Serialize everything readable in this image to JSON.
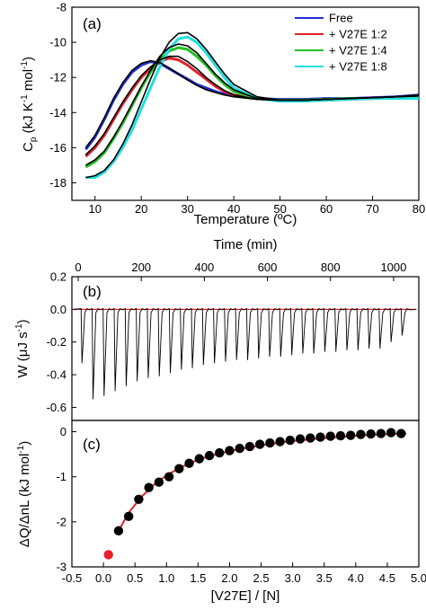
{
  "chart_data": [
    {
      "panel": "(a)",
      "type": "line",
      "xlabel": "Temperature (ºC)",
      "ylabel": "C",
      "ylabel_sub": "p",
      "ylabel_rest": " (kJ K",
      "ylabel_sup1": "-1",
      "ylabel_mid": " mol",
      "ylabel_sup2": "-1",
      "ylabel_end": ")",
      "xlim": [
        5,
        80
      ],
      "ylim": [
        -19,
        -8
      ],
      "xticks": [
        10,
        20,
        30,
        40,
        50,
        60,
        70,
        80
      ],
      "yticks": [
        -18,
        -16,
        -14,
        -12,
        -10,
        -8
      ],
      "legend_position": "top-right",
      "series": [
        {
          "name": "Free",
          "color": "#1f2fd1",
          "x": [
            8,
            10,
            12,
            14,
            16,
            18,
            20,
            22,
            24,
            26,
            28,
            30,
            32,
            34,
            36,
            38,
            40,
            45,
            50,
            55,
            60,
            65,
            70,
            75,
            80
          ],
          "y": [
            -16.1,
            -15.4,
            -14.4,
            -13.3,
            -12.4,
            -11.7,
            -11.3,
            -11.1,
            -11.2,
            -11.5,
            -11.8,
            -12.1,
            -12.4,
            -12.6,
            -12.8,
            -12.95,
            -13.05,
            -13.2,
            -13.25,
            -13.25,
            -13.2,
            -13.2,
            -13.15,
            -13.1,
            -13.0
          ]
        },
        {
          "name": "+ V27E 1:2",
          "color": "#e0202a",
          "x": [
            8,
            10,
            12,
            14,
            16,
            18,
            20,
            22,
            24,
            26,
            28,
            30,
            32,
            34,
            36,
            38,
            40,
            45,
            50,
            55,
            60,
            65,
            70,
            75,
            80
          ],
          "y": [
            -16.5,
            -16.0,
            -15.3,
            -14.4,
            -13.5,
            -12.7,
            -12.0,
            -11.5,
            -11.1,
            -10.9,
            -11.0,
            -11.3,
            -11.7,
            -12.1,
            -12.5,
            -12.8,
            -13.0,
            -13.2,
            -13.3,
            -13.3,
            -13.3,
            -13.25,
            -13.2,
            -13.15,
            -13.1
          ]
        },
        {
          "name": "+ V27E 1:4",
          "color": "#20c020",
          "x": [
            8,
            10,
            12,
            14,
            16,
            18,
            20,
            22,
            24,
            26,
            28,
            30,
            32,
            34,
            36,
            38,
            40,
            45,
            50,
            55,
            60,
            65,
            70,
            75,
            80
          ],
          "y": [
            -17.1,
            -16.8,
            -16.3,
            -15.5,
            -14.6,
            -13.6,
            -12.6,
            -11.7,
            -11.0,
            -10.5,
            -10.3,
            -10.4,
            -10.8,
            -11.3,
            -11.9,
            -12.4,
            -12.8,
            -13.2,
            -13.3,
            -13.3,
            -13.25,
            -13.2,
            -13.2,
            -13.15,
            -13.1
          ]
        },
        {
          "name": "+ V27E 1:8",
          "color": "#20e0e0",
          "x": [
            8,
            10,
            12,
            14,
            16,
            18,
            20,
            22,
            24,
            26,
            28,
            30,
            32,
            34,
            36,
            38,
            40,
            45,
            50,
            55,
            60,
            65,
            70,
            75,
            80
          ],
          "y": [
            -17.7,
            -17.7,
            -17.4,
            -16.8,
            -16.0,
            -15.0,
            -13.8,
            -12.6,
            -11.4,
            -10.4,
            -9.8,
            -9.7,
            -10.0,
            -10.6,
            -11.3,
            -12.0,
            -12.6,
            -13.2,
            -13.35,
            -13.35,
            -13.3,
            -13.25,
            -13.2,
            -13.2,
            -13.2
          ]
        },
        {
          "name": "",
          "color": "#000000",
          "x": [
            8,
            10,
            12,
            14,
            16,
            18,
            20,
            22,
            24,
            26,
            28,
            30,
            32,
            34,
            36,
            38,
            40,
            45,
            50,
            55,
            60,
            65,
            70,
            75,
            80
          ],
          "y": [
            -16.0,
            -15.3,
            -14.3,
            -13.2,
            -12.3,
            -11.6,
            -11.2,
            -11.05,
            -11.15,
            -11.45,
            -11.8,
            -12.15,
            -12.45,
            -12.7,
            -12.85,
            -13.0,
            -13.1,
            -13.25,
            -13.3,
            -13.3,
            -13.25,
            -13.2,
            -13.15,
            -13.1,
            -13.0
          ]
        },
        {
          "name": "",
          "color": "#000000",
          "x": [
            8,
            10,
            12,
            14,
            16,
            18,
            20,
            22,
            24,
            26,
            28,
            30,
            32,
            34,
            36,
            38,
            40,
            45,
            50,
            55,
            60,
            65,
            70,
            75,
            80
          ],
          "y": [
            -16.4,
            -15.9,
            -15.2,
            -14.3,
            -13.4,
            -12.6,
            -11.9,
            -11.4,
            -11.0,
            -10.8,
            -10.8,
            -11.1,
            -11.5,
            -12.0,
            -12.4,
            -12.75,
            -13.0,
            -13.25,
            -13.3,
            -13.3,
            -13.25,
            -13.2,
            -13.15,
            -13.1,
            -13.05
          ]
        },
        {
          "name": "",
          "color": "#000000",
          "x": [
            8,
            10,
            12,
            14,
            16,
            18,
            20,
            22,
            24,
            26,
            28,
            30,
            32,
            34,
            36,
            38,
            40,
            45,
            50,
            55,
            60,
            65,
            70,
            75,
            80
          ],
          "y": [
            -17.0,
            -16.7,
            -16.2,
            -15.4,
            -14.5,
            -13.5,
            -12.5,
            -11.6,
            -10.8,
            -10.3,
            -10.1,
            -10.2,
            -10.6,
            -11.2,
            -11.8,
            -12.3,
            -12.7,
            -13.2,
            -13.3,
            -13.3,
            -13.25,
            -13.2,
            -13.15,
            -13.1,
            -13.05
          ]
        },
        {
          "name": "",
          "color": "#000000",
          "x": [
            8,
            10,
            12,
            14,
            16,
            18,
            20,
            22,
            24,
            26,
            28,
            30,
            32,
            34,
            36,
            38,
            40,
            45,
            50,
            55,
            60,
            65,
            70,
            75,
            80
          ],
          "y": [
            -17.7,
            -17.6,
            -17.3,
            -16.7,
            -15.8,
            -14.7,
            -13.4,
            -12.1,
            -10.9,
            -10.0,
            -9.5,
            -9.45,
            -9.8,
            -10.4,
            -11.1,
            -11.8,
            -12.4,
            -13.1,
            -13.3,
            -13.3,
            -13.25,
            -13.2,
            -13.15,
            -13.1,
            -13.05
          ]
        }
      ]
    },
    {
      "panel": "(b)",
      "type": "line",
      "top_xlabel": "Time (min)",
      "ylabel": "W (μJ s",
      "ylabel_sup": "-1",
      "ylabel_end": ")",
      "xlim": [
        -20,
        1080
      ],
      "ylim": [
        -0.68,
        0.2
      ],
      "top_xticks": [
        0,
        200,
        400,
        600,
        800,
        1000
      ],
      "yticks": [
        0.2,
        0.0,
        -0.2,
        -0.4,
        -0.6
      ],
      "ytick_labels": [
        "0.2",
        "0.0",
        "-0.2",
        "-0.4",
        "-0.6"
      ],
      "baseline_color": "#e0202a",
      "trace_color": "#000000",
      "peak_times": [
        12,
        47,
        82,
        117,
        152,
        187,
        222,
        257,
        292,
        327,
        362,
        397,
        432,
        467,
        502,
        537,
        572,
        607,
        642,
        677,
        712,
        747,
        782,
        817,
        852,
        887,
        922,
        957,
        992,
        1027
      ],
      "peak_values": [
        -0.33,
        -0.55,
        -0.53,
        -0.5,
        -0.47,
        -0.44,
        -0.42,
        -0.41,
        -0.39,
        -0.37,
        -0.36,
        -0.34,
        -0.33,
        -0.32,
        -0.31,
        -0.31,
        -0.3,
        -0.29,
        -0.29,
        -0.28,
        -0.27,
        -0.27,
        -0.26,
        -0.26,
        -0.25,
        -0.25,
        -0.24,
        -0.24,
        -0.2,
        -0.16
      ]
    },
    {
      "panel": "(c)",
      "type": "scatter",
      "xlabel": "[V27E] / [N]",
      "ylabel": "ΔQ/ΔnL (kJ mol",
      "ylabel_sup": "-1",
      "ylabel_end": ")",
      "xlim": [
        -0.5,
        5.0
      ],
      "ylim": [
        -3.0,
        0.25
      ],
      "xticks": [
        -0.5,
        0.0,
        0.5,
        1.0,
        1.5,
        2.0,
        2.5,
        3.0,
        3.5,
        4.0,
        4.5,
        5.0
      ],
      "xtick_labels": [
        "-0.5",
        "0.0",
        "0.5",
        "1.0",
        "1.5",
        "2.0",
        "2.5",
        "3.0",
        "3.5",
        "4.0",
        "4.5",
        "5.0"
      ],
      "yticks": [
        0,
        -1,
        -2,
        -3
      ],
      "ytick_labels": [
        "0",
        "-1",
        "-2",
        "-3"
      ],
      "excluded_point": {
        "x": 0.08,
        "y": -2.73,
        "color": "#e8202a"
      },
      "points": {
        "x": [
          0.24,
          0.4,
          0.56,
          0.72,
          0.88,
          1.04,
          1.2,
          1.36,
          1.52,
          1.68,
          1.84,
          2.0,
          2.16,
          2.32,
          2.48,
          2.64,
          2.8,
          2.96,
          3.12,
          3.28,
          3.44,
          3.6,
          3.76,
          3.92,
          4.08,
          4.24,
          4.4,
          4.56,
          4.72
        ],
        "y": [
          -2.2,
          -1.88,
          -1.5,
          -1.24,
          -1.12,
          -1.0,
          -0.82,
          -0.7,
          -0.6,
          -0.53,
          -0.47,
          -0.42,
          -0.37,
          -0.33,
          -0.28,
          -0.25,
          -0.22,
          -0.19,
          -0.16,
          -0.14,
          -0.12,
          -0.1,
          -0.09,
          -0.08,
          -0.06,
          -0.05,
          -0.04,
          -0.02,
          -0.04
        ]
      },
      "fit": {
        "color": "#e0202a",
        "x": [
          0.22,
          0.4,
          0.6,
          0.8,
          1.0,
          1.2,
          1.4,
          1.6,
          1.8,
          2.0,
          2.3,
          2.6,
          2.9,
          3.2,
          3.5,
          3.8,
          4.1,
          4.4,
          4.8
        ],
        "y": [
          -2.25,
          -1.8,
          -1.45,
          -1.18,
          -0.97,
          -0.81,
          -0.68,
          -0.58,
          -0.5,
          -0.43,
          -0.35,
          -0.28,
          -0.22,
          -0.18,
          -0.14,
          -0.11,
          -0.08,
          -0.06,
          -0.04
        ]
      }
    }
  ]
}
